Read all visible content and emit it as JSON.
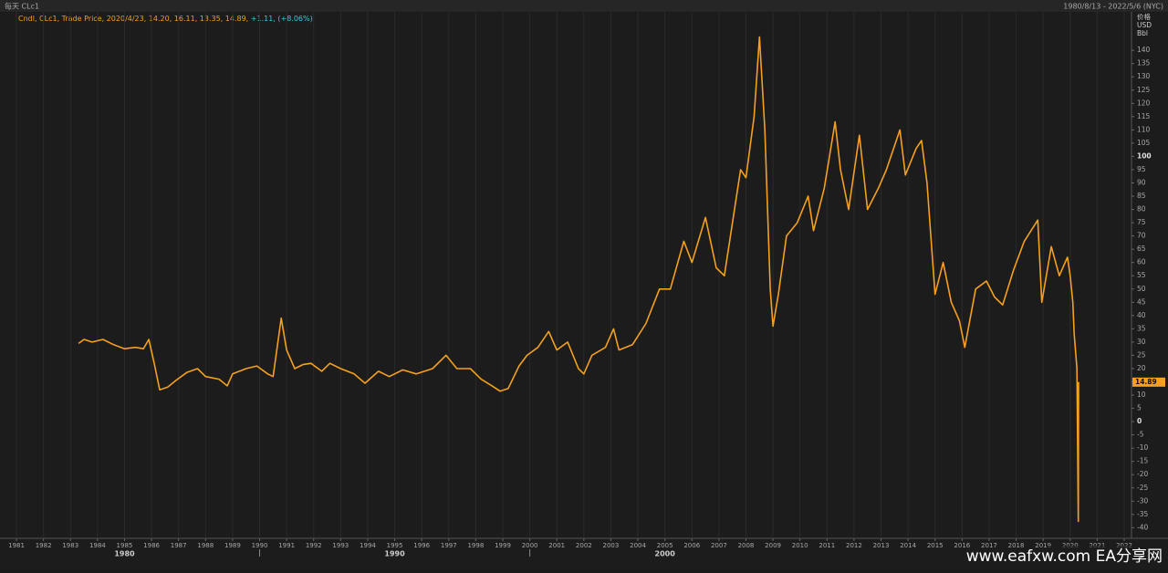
{
  "chart_data": {
    "type": "line",
    "title": "每天 CLc1",
    "subtitle": "1980/8/13 - 2022/5/6 (NYC)",
    "legend": {
      "text": "Cndl, CLc1, Trade Price, 2020/4/23, 14.20, 16.11, 13.35, 14.89,",
      "change": "+1.11, (+8.06%)"
    },
    "y_axis_title": [
      "价格",
      "USD",
      "Bbl"
    ],
    "watermark": "www.eafxw.com  EA分享网",
    "xlim": [
      1980.56,
      2022.27
    ],
    "ylim": [
      -44,
      154.5
    ],
    "xticks": [
      1981,
      1982,
      1983,
      1984,
      1985,
      1986,
      1987,
      1988,
      1989,
      1990,
      1991,
      1992,
      1993,
      1994,
      1995,
      1996,
      1997,
      1998,
      1999,
      2000,
      2001,
      2002,
      2003,
      2004,
      2005,
      2006,
      2007,
      2008,
      2009,
      2010,
      2011,
      2012,
      2013,
      2014,
      2015,
      2016,
      2017,
      2018,
      2019,
      2020,
      2021,
      2022
    ],
    "decade_ticks": [
      {
        "value": 1985,
        "label": "1980"
      },
      {
        "value": 1995,
        "label": "1990"
      },
      {
        "value": 2005,
        "label": "2000"
      }
    ],
    "yticks": [
      -40,
      -35,
      -30,
      -25,
      -20,
      -15,
      -10,
      -5,
      0,
      5,
      10,
      15,
      20,
      25,
      30,
      35,
      40,
      45,
      50,
      55,
      60,
      65,
      70,
      75,
      80,
      85,
      90,
      95,
      100,
      105,
      110,
      115,
      120,
      125,
      130,
      135,
      140
    ],
    "grid": true,
    "last_value": 14.89,
    "x": [
      1983.3,
      1983.5,
      1983.8,
      1984.2,
      1984.6,
      1985.0,
      1985.4,
      1985.7,
      1985.9,
      1986.1,
      1986.3,
      1986.6,
      1986.9,
      1987.3,
      1987.7,
      1988.0,
      1988.5,
      1988.8,
      1989.0,
      1989.5,
      1989.9,
      1990.3,
      1990.5,
      1990.8,
      1991.0,
      1991.3,
      1991.6,
      1991.9,
      1992.3,
      1992.6,
      1993.0,
      1993.5,
      1993.9,
      1994.4,
      1994.8,
      1995.3,
      1995.8,
      1996.4,
      1996.9,
      1997.3,
      1997.8,
      1998.2,
      1998.6,
      1998.9,
      1999.2,
      1999.6,
      1999.9,
      2000.3,
      2000.7,
      2001.0,
      2001.4,
      2001.8,
      2002.0,
      2002.3,
      2002.8,
      2003.1,
      2003.3,
      2003.8,
      2004.3,
      2004.8,
      2005.2,
      2005.7,
      2006.0,
      2006.5,
      2006.9,
      2007.2,
      2007.8,
      2008.0,
      2008.3,
      2008.5,
      2008.7,
      2008.9,
      2009.0,
      2009.2,
      2009.5,
      2009.9,
      2010.3,
      2010.5,
      2010.9,
      2011.3,
      2011.5,
      2011.8,
      2012.2,
      2012.5,
      2012.9,
      2013.2,
      2013.7,
      2013.9,
      2014.3,
      2014.5,
      2014.7,
      2015.0,
      2015.3,
      2015.6,
      2015.9,
      2016.1,
      2016.5,
      2016.9,
      2017.2,
      2017.5,
      2017.9,
      2018.3,
      2018.8,
      2018.95,
      2019.3,
      2019.6,
      2019.9,
      2020.0,
      2020.1,
      2020.15,
      2020.25,
      2020.3,
      2020.31
    ],
    "series": [
      {
        "name": "CLc1",
        "color": "#f5a01e",
        "values": [
          29.5,
          31,
          30,
          31,
          29,
          27.5,
          28,
          27.5,
          31,
          22,
          12,
          13,
          15.5,
          18.5,
          20,
          17,
          16,
          13.5,
          18,
          20,
          21,
          18,
          17,
          39,
          27,
          20,
          21.5,
          22,
          19,
          22,
          20,
          18,
          14.5,
          19,
          17,
          19.5,
          18,
          20,
          25,
          20,
          20,
          16,
          13.5,
          11.5,
          12.5,
          21,
          25,
          28,
          34,
          27,
          30,
          20,
          18,
          25,
          28,
          35,
          27,
          29,
          37,
          50,
          50,
          68,
          60,
          77,
          58,
          55,
          95,
          92,
          115,
          145,
          110,
          50,
          36,
          48,
          70,
          75,
          85,
          72,
          88,
          113,
          95,
          80,
          108,
          80,
          88,
          95,
          110,
          93,
          103,
          106,
          90,
          48,
          60,
          45,
          38,
          28,
          50,
          53,
          47,
          44,
          57,
          68,
          76,
          45,
          66,
          55,
          62,
          55,
          45,
          33,
          20,
          -37.63,
          14.89
        ]
      }
    ]
  }
}
